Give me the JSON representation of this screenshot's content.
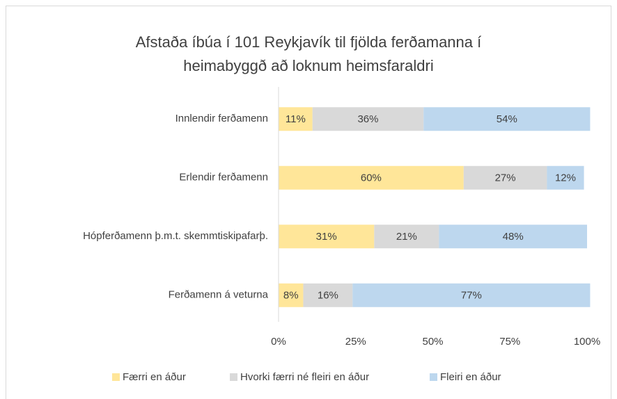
{
  "chart_data": {
    "type": "stacked-bar",
    "title": [
      "Afstaða íbúa í 101 Reykjavík til fjölda ferðamanna í",
      "heimabyggð að loknum heimsfaraldri"
    ],
    "categories": [
      "Innlendir ferðamenn",
      "Erlendir ferðamenn",
      "Hópferðamenn þ.m.t. skemmtiskipafarþ.",
      "Ferðamenn á veturna"
    ],
    "series": [
      {
        "name": "Færri en áður",
        "color": "#ffe699",
        "values": [
          11,
          60,
          31,
          8
        ],
        "value_labels": [
          "11%",
          "60%",
          "31%",
          "8%"
        ]
      },
      {
        "name": "Hvorki færri né fleiri en áður",
        "color": "#d9d9d9",
        "values": [
          36,
          27,
          21,
          16
        ],
        "value_labels": [
          "36%",
          "27%",
          "21%",
          "16%"
        ]
      },
      {
        "name": "Fleiri en áður",
        "color": "#bdd7ee",
        "values": [
          54,
          12,
          48,
          77
        ],
        "value_labels": [
          "54%",
          "12%",
          "48%",
          "77%"
        ]
      }
    ],
    "xlim": [
      0,
      100
    ],
    "xticks": [
      {
        "value": 0,
        "label": "0%"
      },
      {
        "value": 25,
        "label": "25%"
      },
      {
        "value": 50,
        "label": "50%"
      },
      {
        "value": 75,
        "label": "75%"
      },
      {
        "value": 100,
        "label": "100%"
      }
    ],
    "legend": "bottom"
  }
}
